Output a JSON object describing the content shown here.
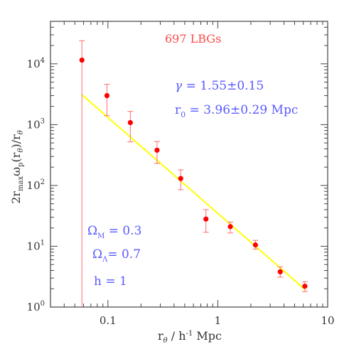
{
  "chart_data": {
    "type": "scatter",
    "x_scale": "log",
    "y_scale": "log",
    "xlim": [
      0.03,
      10
    ],
    "ylim": [
      1,
      50000
    ],
    "xlabel": {
      "main": "r",
      "sub": "θ",
      "rest": " / h",
      "sup": "-1",
      "tail": " Mpc"
    },
    "ylabel": {
      "a": "2r",
      "a_sub": "max",
      "b": "ω",
      "b_sub": "p",
      "c": "(r",
      "c_sub": "θ",
      "d": ")/r",
      "d_sub": "θ"
    },
    "x_ticks": [
      {
        "value": 0.1,
        "label": "0.1"
      },
      {
        "value": 1,
        "label": "1"
      },
      {
        "value": 10,
        "label": "10"
      }
    ],
    "y_ticks": [
      {
        "value": 1,
        "base": "10",
        "exp": "0"
      },
      {
        "value": 10,
        "base": "10",
        "exp": "1"
      },
      {
        "value": 100,
        "base": "10",
        "exp": "2"
      },
      {
        "value": 1000,
        "base": "10",
        "exp": "3"
      },
      {
        "value": 10000,
        "base": "10",
        "exp": "4"
      }
    ],
    "points": [
      {
        "x": 0.058,
        "y": 11500,
        "ylo": 1,
        "yhi": 24000
      },
      {
        "x": 0.098,
        "y": 3000,
        "ylo": 1400,
        "yhi": 4600
      },
      {
        "x": 0.16,
        "y": 1080,
        "ylo": 520,
        "yhi": 1650
      },
      {
        "x": 0.28,
        "y": 380,
        "ylo": 230,
        "yhi": 530
      },
      {
        "x": 0.46,
        "y": 130,
        "ylo": 85,
        "yhi": 180
      },
      {
        "x": 0.78,
        "y": 28,
        "ylo": 17,
        "yhi": 40
      },
      {
        "x": 1.3,
        "y": 21,
        "ylo": 16.5,
        "yhi": 25
      },
      {
        "x": 2.2,
        "y": 10.5,
        "ylo": 9,
        "yhi": 12.5
      },
      {
        "x": 3.7,
        "y": 3.8,
        "ylo": 3.1,
        "yhi": 4.6
      },
      {
        "x": 6.2,
        "y": 2.2,
        "ylo": 1.8,
        "yhi": 2.6
      }
    ],
    "fit_line": {
      "x": [
        0.058,
        6.2
      ],
      "y": [
        3100,
        1.95
      ]
    },
    "colors": {
      "points": "#ff0000",
      "errorbars": "#ff6b6b",
      "fit": "#ffff00",
      "axes": "#444444"
    }
  },
  "annotations": {
    "sample": "697 LBGs",
    "gamma": {
      "sym": "γ",
      "text": " =  1.55±0.15"
    },
    "r0": {
      "sym": "r",
      "sub": "0",
      "text": " =  3.96±0.29 Mpc"
    },
    "omega_m": {
      "sym": "Ω",
      "sub": "M",
      "text": " =  0.3"
    },
    "omega_l": {
      "sym": "Ω",
      "sub": "Λ",
      "text": "=  0.7"
    },
    "h": "h  =  1"
  }
}
